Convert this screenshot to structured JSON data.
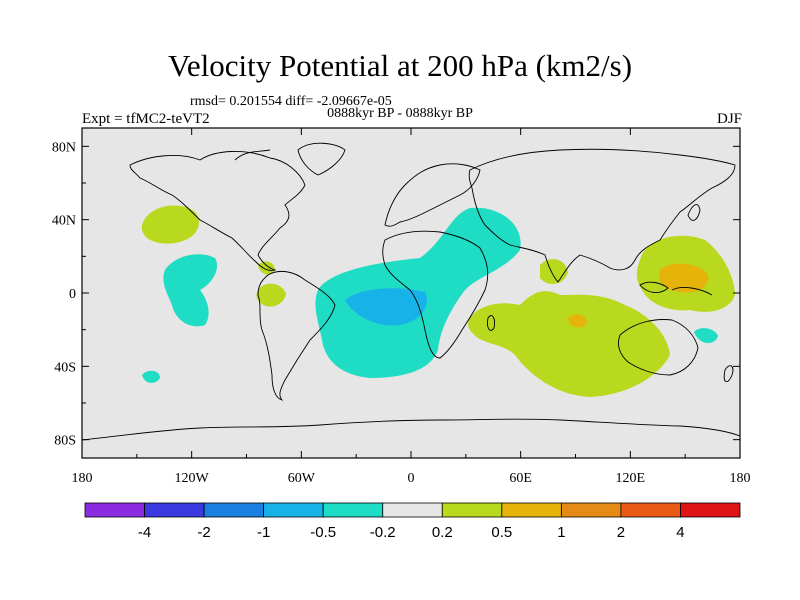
{
  "title": "Velocity Potential at 200 hPa (km2/s)",
  "stats": "rmsd= 0.201554  diff= -2.09667e-05",
  "period": "0888kyr BP - 0888kyr BP",
  "experiment": "Expt = tfMC2-teVT2",
  "season": "DJF",
  "map": {
    "lon_range": [
      -180,
      180
    ],
    "lat_range": [
      -90,
      90
    ],
    "background_color": "#e6e6e6",
    "x_ticks": [
      {
        "lon": -180,
        "label": "180"
      },
      {
        "lon": -120,
        "label": "120W"
      },
      {
        "lon": -60,
        "label": "60W"
      },
      {
        "lon": 0,
        "label": "0"
      },
      {
        "lon": 60,
        "label": "60E"
      },
      {
        "lon": 120,
        "label": "120E"
      },
      {
        "lon": 180,
        "label": "180"
      }
    ],
    "y_ticks": [
      {
        "lat": 80,
        "label": "80N"
      },
      {
        "lat": 40,
        "label": "40N"
      },
      {
        "lat": 0,
        "label": "0"
      },
      {
        "lat": -40,
        "label": "40S"
      },
      {
        "lat": -80,
        "label": "80S"
      }
    ]
  },
  "colorbar": {
    "colors": [
      "#8a2be2",
      "#3a3ae0",
      "#1a7fe0",
      "#17b3e8",
      "#1fdcc4",
      "#e6e6e6",
      "#b8d91e",
      "#e5b30a",
      "#e58a14",
      "#e85a14",
      "#e01414"
    ],
    "labels": [
      "-4",
      "-2",
      "-1",
      "-0.5",
      "-0.2",
      "0.2",
      "0.5",
      "1",
      "2",
      "4"
    ]
  }
}
